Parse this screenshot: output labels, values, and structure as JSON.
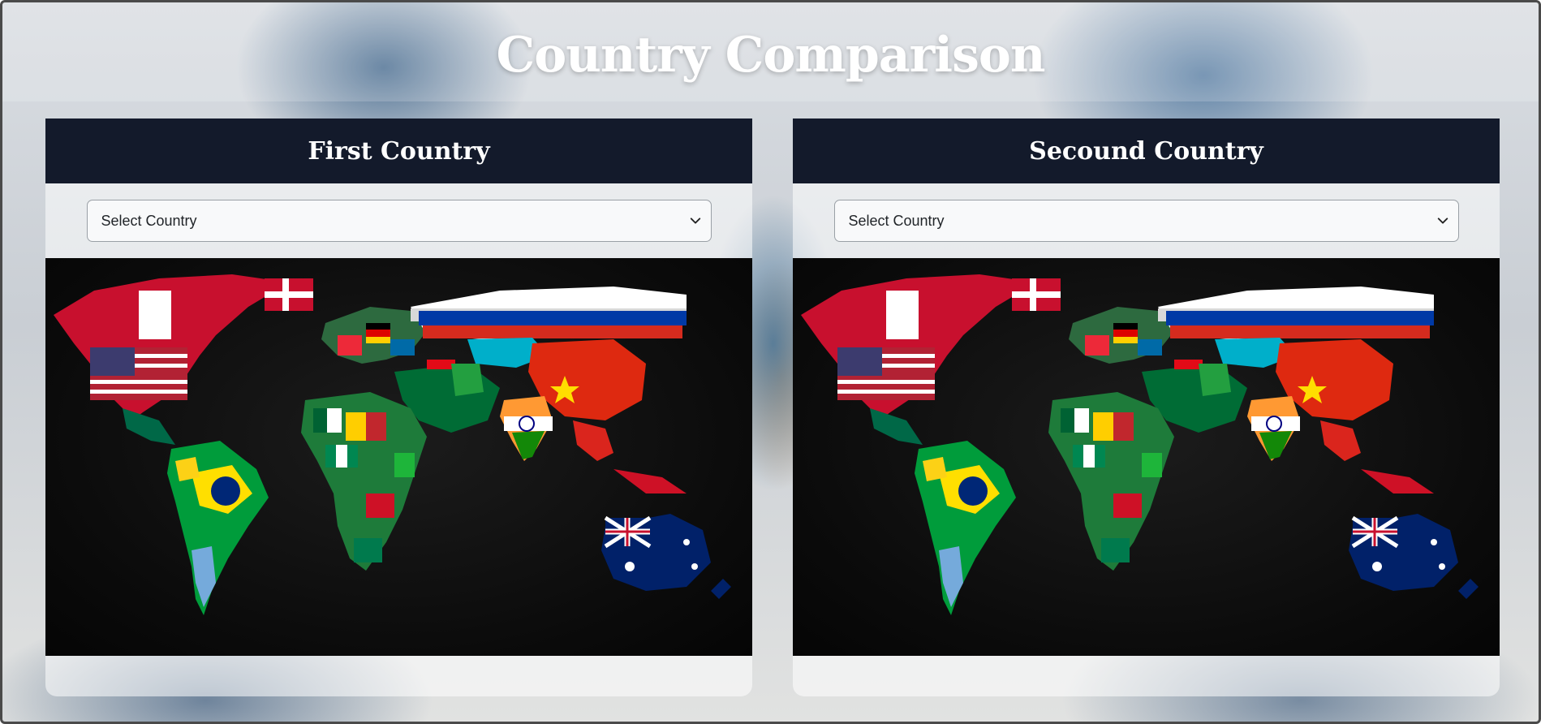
{
  "page": {
    "title": "Country Comparison"
  },
  "panels": [
    {
      "title": "First Country",
      "select": {
        "selected": "Select Country"
      },
      "map_alt": "world flag map"
    },
    {
      "title": "Secound Country",
      "select": {
        "selected": "Select Country"
      },
      "map_alt": "world flag map"
    }
  ],
  "colors": {
    "card_header_bg": "#131a2b",
    "title_text": "#ffffff",
    "select_bg": "#f8f9fa",
    "map_bg": "#0b0b0b"
  },
  "icons": {
    "select_arrow": "chevron-down-icon"
  }
}
